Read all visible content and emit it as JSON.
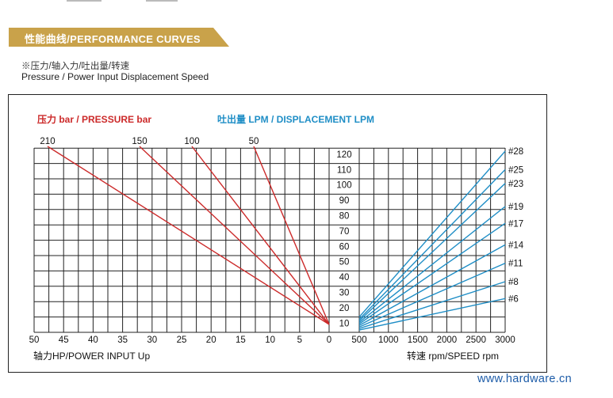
{
  "header": {
    "banner_text": "性能曲线/PERFORMANCE CURVES",
    "subtitle_cn": "※压力/轴入力/吐出量/转速",
    "subtitle_en": "Pressure / Power Input Displacement Speed"
  },
  "colors": {
    "banner": "#c9a24a",
    "pressure": "#cc2a2a",
    "displacement": "#1f8ec6",
    "grid": "#222222",
    "watermark": "#1d5ca8"
  },
  "watermark": "www.hardware.cn",
  "chart_data": [
    {
      "type": "line",
      "title": "压力 bar / PRESSURE bar",
      "xlabel": "轴力HP/POWER INPUT Up",
      "ylabel": "吐出量 LPM / DISPLACEMENT LPM",
      "x_ticks": [
        "50",
        "45",
        "40",
        "35",
        "30",
        "25",
        "20",
        "15",
        "10",
        "5",
        "0"
      ],
      "xlim": [
        50,
        0
      ],
      "pressure_tick_labels": [
        "210",
        "150",
        "100",
        "50"
      ],
      "series": [
        {
          "name": "210",
          "x": [
            0,
            50
          ],
          "y": [
            10,
            124
          ]
        },
        {
          "name": "150",
          "x": [
            0,
            32.5
          ],
          "y": [
            10,
            124
          ]
        },
        {
          "name": "100",
          "x": [
            0,
            23.5
          ],
          "y": [
            10,
            124
          ]
        },
        {
          "name": "50",
          "x": [
            0,
            13
          ],
          "y": [
            10,
            124
          ]
        }
      ]
    },
    {
      "type": "line",
      "title": "吐出量 LPM / DISPLACEMENT LPM",
      "xlabel": "转速 rpm/SPEED rpm",
      "ylabel": "吐出量 LPM",
      "x_ticks": [
        "500",
        "1000",
        "1500",
        "2000",
        "2500",
        "3000"
      ],
      "y_ticks": [
        "10",
        "20",
        "30",
        "40",
        "50",
        "60",
        "70",
        "80",
        "90",
        "100",
        "110",
        "120"
      ],
      "xlim": [
        500,
        3000
      ],
      "ylim": [
        5,
        125
      ],
      "series": [
        {
          "name": "#28",
          "x": [
            500,
            3000
          ],
          "y": [
            15,
            123
          ]
        },
        {
          "name": "#25",
          "x": [
            500,
            3000
          ],
          "y": [
            13.5,
            111
          ]
        },
        {
          "name": "#23",
          "x": [
            500,
            3000
          ],
          "y": [
            12.5,
            102
          ]
        },
        {
          "name": "#19",
          "x": [
            500,
            3000
          ],
          "y": [
            11.5,
            87
          ]
        },
        {
          "name": "#17",
          "x": [
            500,
            3000
          ],
          "y": [
            10.5,
            76
          ]
        },
        {
          "name": "#14",
          "x": [
            500,
            3000
          ],
          "y": [
            9.5,
            62
          ]
        },
        {
          "name": "#11",
          "x": [
            500,
            3000
          ],
          "y": [
            8.5,
            50
          ]
        },
        {
          "name": "#8",
          "x": [
            500,
            3000
          ],
          "y": [
            7.5,
            38
          ]
        },
        {
          "name": "#6",
          "x": [
            500,
            3000
          ],
          "y": [
            6.5,
            27
          ]
        }
      ]
    }
  ]
}
